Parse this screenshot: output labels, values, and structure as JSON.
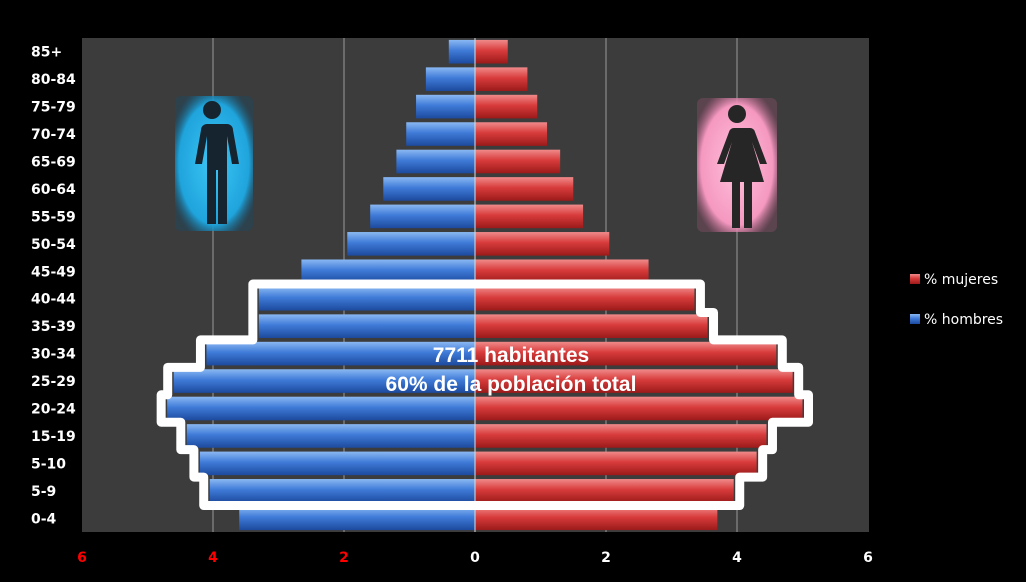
{
  "chart_data": {
    "type": "bar",
    "subtype": "population-pyramid",
    "title": "",
    "xlabel": "",
    "ylabel": "",
    "xlim": [
      -6,
      6
    ],
    "x_ticks": [
      {
        "value": -6,
        "label": "6"
      },
      {
        "value": -4,
        "label": "4"
      },
      {
        "value": -2,
        "label": "2"
      },
      {
        "value": 0,
        "label": "0"
      },
      {
        "value": 2,
        "label": "2"
      },
      {
        "value": 4,
        "label": "4"
      },
      {
        "value": 6,
        "label": "6"
      }
    ],
    "negative_tick_color": "#ff0000",
    "positive_tick_color": "#ffffff",
    "categories": [
      "85+",
      "80-84",
      "75-79",
      "70-74",
      "65-69",
      "60-64",
      "55-59",
      "50-54",
      "45-49",
      "40-44",
      "35-39",
      "30-34",
      "25-29",
      "20-24",
      "15-19",
      "5-10",
      "5-9",
      "0-4"
    ],
    "series": [
      {
        "name": "% mujeres",
        "color": "#d63a3a",
        "side": "right",
        "values": [
          0.5,
          0.8,
          0.95,
          1.1,
          1.3,
          1.5,
          1.65,
          2.05,
          2.65,
          3.35,
          3.55,
          4.6,
          4.85,
          5.0,
          4.45,
          4.3,
          3.95,
          3.7
        ]
      },
      {
        "name": "% hombres",
        "color": "#3e7ad6",
        "side": "left",
        "values": [
          0.4,
          0.75,
          0.9,
          1.05,
          1.2,
          1.4,
          1.6,
          1.95,
          2.65,
          3.3,
          3.3,
          4.1,
          4.6,
          4.7,
          4.4,
          4.2,
          4.05,
          3.6
        ]
      }
    ],
    "grid": true,
    "legend_position": "right",
    "annotation": {
      "line1": "7711 habitantes",
      "line2": "60% de la población total"
    },
    "highlight_categories": [
      "40-44",
      "35-39",
      "30-34",
      "25-29",
      "20-24",
      "15-19",
      "5-10",
      "5-9"
    ]
  },
  "icons": {
    "male": "male-person-icon",
    "female": "female-person-icon"
  },
  "colors": {
    "plot_bg": "#3c3c3c",
    "page_bg": "#000000",
    "grid": "#9a9a9a",
    "male_glow": "#2fb6ea",
    "female_glow": "#f59ac2"
  }
}
